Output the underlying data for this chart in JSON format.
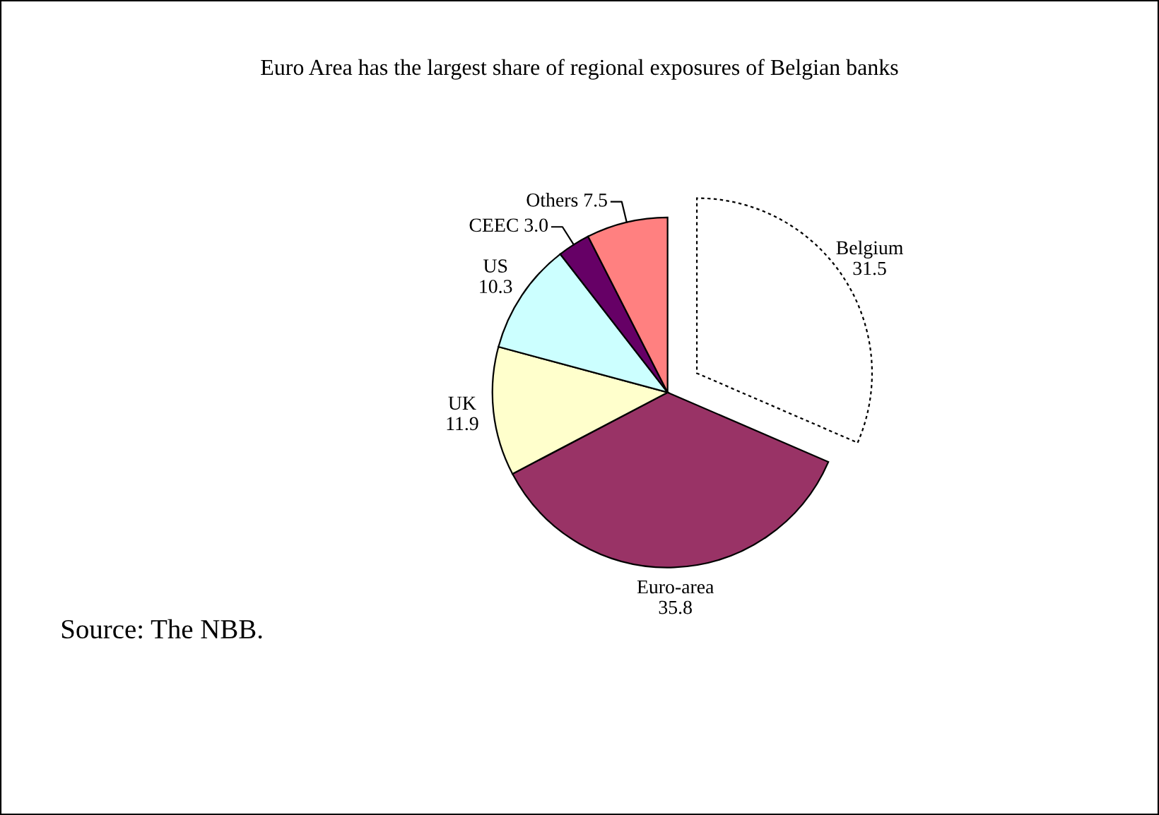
{
  "chart_data": {
    "type": "pie",
    "title": "Euro Area has the largest share of regional exposures of Belgian banks",
    "categories": [
      "Belgium",
      "Euro-area",
      "UK",
      "US",
      "CEEC",
      "Others"
    ],
    "values": [
      31.5,
      35.8,
      11.9,
      10.3,
      3.0,
      7.5
    ],
    "value_labels": [
      "31.5",
      "35.8",
      "11.9",
      "10.3",
      "3.0",
      "7.5"
    ],
    "colors": [
      "#ffffff",
      "#993366",
      "#ffffcc",
      "#ccffff",
      "#660066",
      "#ff8080"
    ],
    "annotations": [
      "Source: The NBB."
    ]
  }
}
